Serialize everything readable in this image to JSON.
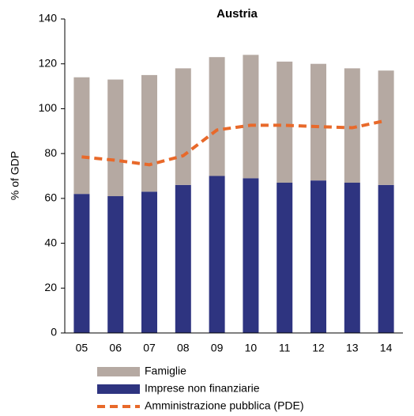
{
  "chart_data": {
    "type": "stacked-bar-line",
    "title": "Austria",
    "y_label": "% of GDP",
    "categories": [
      "05",
      "06",
      "07",
      "08",
      "09",
      "10",
      "11",
      "12",
      "13",
      "14"
    ],
    "series": [
      {
        "name": "Imprese non finanziarie",
        "type": "bar",
        "color": "#2e3480",
        "values": [
          62,
          61,
          63,
          66,
          70,
          69,
          67,
          68,
          67,
          66
        ]
      },
      {
        "name": "Famiglie",
        "type": "bar",
        "color": "#b5a9a2",
        "values": [
          52,
          52,
          52,
          52,
          53,
          55,
          54,
          52,
          51,
          51
        ]
      },
      {
        "name": "Amministrazione pubblica (PDE)",
        "type": "line",
        "color": "#e8692a",
        "values": [
          78.5,
          77,
          75,
          79,
          90.5,
          92.6,
          92.6,
          92,
          91.5,
          94.7
        ]
      }
    ],
    "legend_order": [
      1,
      0,
      2
    ],
    "ylim": [
      0,
      140
    ],
    "yticks": [
      0,
      20,
      40,
      60,
      80,
      100,
      120,
      140
    ],
    "grid": false
  }
}
